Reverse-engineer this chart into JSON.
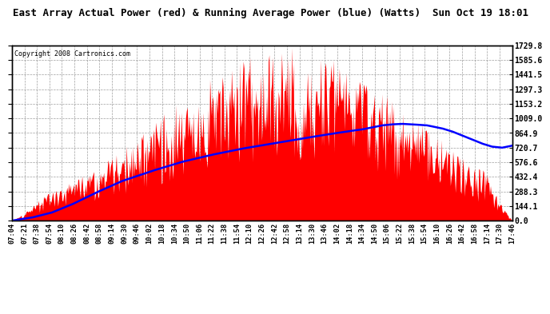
{
  "title": "East Array Actual Power (red) & Running Average Power (blue) (Watts)  Sun Oct 19 18:01",
  "copyright": "Copyright 2008 Cartronics.com",
  "ylabel_right": [
    "1729.8",
    "1585.6",
    "1441.5",
    "1297.3",
    "1153.2",
    "1009.0",
    "864.9",
    "720.7",
    "576.6",
    "432.4",
    "288.3",
    "144.1",
    "0.0"
  ],
  "ymax": 1729.8,
  "ymin": 0.0,
  "background_color": "#ffffff",
  "plot_bg_color": "#ffffff",
  "grid_color": "#888888",
  "bar_color": "#ff0000",
  "avg_color": "#0000ff",
  "title_fontsize": 9,
  "copyright_fontsize": 6,
  "x_tick_labels": [
    "07:04",
    "07:21",
    "07:38",
    "07:54",
    "08:10",
    "08:26",
    "08:42",
    "08:58",
    "09:14",
    "09:30",
    "09:46",
    "10:02",
    "10:18",
    "10:34",
    "10:50",
    "11:06",
    "11:22",
    "11:38",
    "11:54",
    "12:10",
    "12:26",
    "12:42",
    "12:58",
    "13:14",
    "13:30",
    "13:46",
    "14:02",
    "14:18",
    "14:34",
    "14:50",
    "15:06",
    "15:22",
    "15:38",
    "15:54",
    "16:10",
    "16:26",
    "16:42",
    "16:58",
    "17:14",
    "17:30",
    "17:46"
  ],
  "num_points": 600,
  "avg_points": [
    [
      0.0,
      0.0
    ],
    [
      0.04,
      30.0
    ],
    [
      0.08,
      80.0
    ],
    [
      0.12,
      160.0
    ],
    [
      0.17,
      280.0
    ],
    [
      0.22,
      390.0
    ],
    [
      0.28,
      490.0
    ],
    [
      0.34,
      580.0
    ],
    [
      0.4,
      650.0
    ],
    [
      0.46,
      710.0
    ],
    [
      0.52,
      760.0
    ],
    [
      0.58,
      810.0
    ],
    [
      0.63,
      850.0
    ],
    [
      0.67,
      880.0
    ],
    [
      0.7,
      900.0
    ],
    [
      0.72,
      920.0
    ],
    [
      0.74,
      940.0
    ],
    [
      0.76,
      950.0
    ],
    [
      0.78,
      955.0
    ],
    [
      0.8,
      950.0
    ],
    [
      0.83,
      940.0
    ],
    [
      0.86,
      910.0
    ],
    [
      0.88,
      880.0
    ],
    [
      0.9,
      840.0
    ],
    [
      0.92,
      800.0
    ],
    [
      0.94,
      760.0
    ],
    [
      0.96,
      730.0
    ],
    [
      0.98,
      720.0
    ],
    [
      1.0,
      740.0
    ]
  ]
}
